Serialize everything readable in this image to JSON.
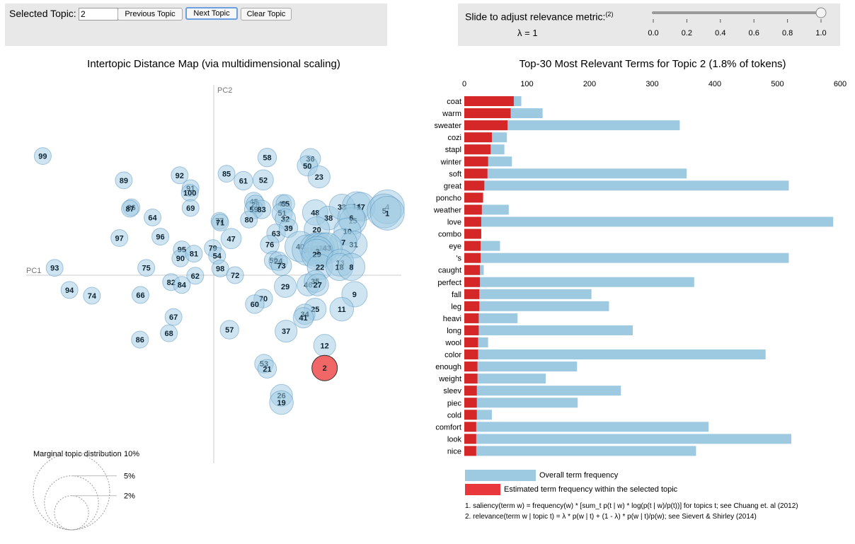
{
  "topic_controls": {
    "label": "Selected Topic:",
    "value": "2",
    "prev_label": "Previous Topic",
    "next_label": "Next Topic",
    "clear_label": "Clear Topic"
  },
  "lambda_controls": {
    "label": "Slide to adjust relevance metric:",
    "footnote_marker": "(2)",
    "lambda_text": "λ = 1",
    "value": 1.0,
    "ticks": [
      "0.0",
      "0.2",
      "0.4",
      "0.6",
      "0.8",
      "1.0"
    ]
  },
  "colors": {
    "bubble_fill": "#9ecae1",
    "bubble_stroke": "#4a8bbd",
    "selected_fill": "#ef5555",
    "bar_overall": "#9ecae1",
    "bar_topic": "#d62728",
    "legend_topic": "#e8383b"
  },
  "chart_data": [
    {
      "type": "scatter",
      "title": "Intertopic Distance Map (via multidimensional scaling)",
      "xlabel": "PC1",
      "ylabel": "PC2",
      "xlim": [
        -10,
        10
      ],
      "ylim": [
        -10,
        10
      ],
      "selected_topic": "2",
      "legend_title": "Marginal topic distribution",
      "legend_entries": [
        {
          "label": "2%",
          "share": 0.02
        },
        {
          "label": "5%",
          "share": 0.05
        },
        {
          "label": "10%",
          "share": 0.1
        }
      ],
      "points": [
        {
          "id": "99",
          "x": -9.22,
          "y": 6.38,
          "size": 1
        },
        {
          "id": "89",
          "x": -4.85,
          "y": 5.08,
          "size": 1
        },
        {
          "id": "92",
          "x": -1.84,
          "y": 5.35,
          "size": 1
        },
        {
          "id": "91",
          "x": -1.25,
          "y": 4.66,
          "size": 1
        },
        {
          "id": "100",
          "x": -1.29,
          "y": 4.41,
          "size": 1
        },
        {
          "id": "69",
          "x": -1.25,
          "y": 3.6,
          "size": 1
        },
        {
          "id": "86",
          "x": -4.44,
          "y": 3.63,
          "size": 1
        },
        {
          "id": "87",
          "x": -4.52,
          "y": 3.56,
          "size": 1
        },
        {
          "id": "64",
          "x": -3.3,
          "y": 3.09,
          "size": 1
        },
        {
          "id": "97",
          "x": -5.09,
          "y": 1.99,
          "size": 1
        },
        {
          "id": "96",
          "x": -2.88,
          "y": 2.06,
          "size": 1
        },
        {
          "id": "85",
          "x": 0.69,
          "y": 5.43,
          "size": 1
        },
        {
          "id": "58",
          "x": 2.88,
          "y": 6.3,
          "size": 1.1
        },
        {
          "id": "61",
          "x": 1.6,
          "y": 5.06,
          "size": 1.1
        },
        {
          "id": "52",
          "x": 2.67,
          "y": 5.1,
          "size": 1.2
        },
        {
          "id": "36",
          "x": 5.21,
          "y": 6.24,
          "size": 1.2
        },
        {
          "id": "50",
          "x": 5.05,
          "y": 5.86,
          "size": 1.2
        },
        {
          "id": "23",
          "x": 5.68,
          "y": 5.26,
          "size": 1.3
        },
        {
          "id": "45",
          "x": 2.16,
          "y": 3.94,
          "size": 1.1
        },
        {
          "id": "28",
          "x": 2.25,
          "y": 3.79,
          "size": 1.1
        },
        {
          "id": "59",
          "x": 2.16,
          "y": 3.52,
          "size": 1.1
        },
        {
          "id": "83",
          "x": 2.58,
          "y": 3.52,
          "size": 1.1
        },
        {
          "id": "49",
          "x": 3.69,
          "y": 3.82,
          "size": 1.1
        },
        {
          "id": "65",
          "x": 3.86,
          "y": 3.82,
          "size": 1.1
        },
        {
          "id": "51",
          "x": 3.69,
          "y": 3.33,
          "size": 1.2
        },
        {
          "id": "32",
          "x": 3.86,
          "y": 3.02,
          "size": 1.2
        },
        {
          "id": "80",
          "x": 1.9,
          "y": 2.98,
          "size": 1
        },
        {
          "id": "77",
          "x": 0.31,
          "y": 2.91,
          "size": 1
        },
        {
          "id": "71",
          "x": 0.35,
          "y": 2.82,
          "size": 1
        },
        {
          "id": "47",
          "x": 0.94,
          "y": 1.96,
          "size": 1.2
        },
        {
          "id": "63",
          "x": 3.36,
          "y": 2.24,
          "size": 1.1
        },
        {
          "id": "39",
          "x": 4.03,
          "y": 2.52,
          "size": 1.1
        },
        {
          "id": "76",
          "x": 3.02,
          "y": 1.64,
          "size": 1.1
        },
        {
          "id": "48",
          "x": 5.47,
          "y": 3.36,
          "size": 1.5
        },
        {
          "id": "38",
          "x": 6.19,
          "y": 3.06,
          "size": 1.4
        },
        {
          "id": "33",
          "x": 6.91,
          "y": 3.66,
          "size": 1.5
        },
        {
          "id": "14",
          "x": 7.71,
          "y": 3.7,
          "size": 1.7
        },
        {
          "id": "17",
          "x": 7.93,
          "y": 3.66,
          "size": 1.7
        },
        {
          "id": "4",
          "x": 9.36,
          "y": 3.66,
          "size": 2
        },
        {
          "id": "5",
          "x": 9.19,
          "y": 3.44,
          "size": 2
        },
        {
          "id": "1",
          "x": 9.36,
          "y": 3.32,
          "size": 2
        },
        {
          "id": "15",
          "x": 7.5,
          "y": 2.91,
          "size": 1.6
        },
        {
          "id": "6",
          "x": 7.42,
          "y": 3.06,
          "size": 1.6
        },
        {
          "id": "20",
          "x": 5.56,
          "y": 2.45,
          "size": 1.5
        },
        {
          "id": "10",
          "x": 7.21,
          "y": 2.34,
          "size": 1.6
        },
        {
          "id": "31",
          "x": 7.54,
          "y": 1.64,
          "size": 1.6
        },
        {
          "id": "7",
          "x": 6.99,
          "y": 1.76,
          "size": 1.6
        },
        {
          "id": "40",
          "x": 4.66,
          "y": 1.53,
          "size": 1.8
        },
        {
          "id": "30",
          "x": 5.05,
          "y": 1.34,
          "size": 1.8
        },
        {
          "id": "44",
          "x": 5.47,
          "y": 1.42,
          "size": 1.8
        },
        {
          "id": "18",
          "x": 5.68,
          "y": 1.45,
          "size": 1.8
        },
        {
          "id": "16",
          "x": 5.89,
          "y": 1.45,
          "size": 1.8
        },
        {
          "id": "43",
          "x": 6.1,
          "y": 1.45,
          "size": 1.8
        },
        {
          "id": "3",
          "x": 5.6,
          "y": 1.26,
          "size": 1.8
        },
        {
          "id": "29",
          "x": 5.56,
          "y": 1.11,
          "size": 1.8
        },
        {
          "id": "95",
          "x": -1.72,
          "y": 1.38,
          "size": 1
        },
        {
          "id": "90",
          "x": -1.8,
          "y": 0.9,
          "size": 1
        },
        {
          "id": "81",
          "x": -1.07,
          "y": 1.15,
          "size": 1
        },
        {
          "id": "79",
          "x": -0.05,
          "y": 1.45,
          "size": 1
        },
        {
          "id": "54",
          "x": 0.18,
          "y": 1.04,
          "size": 1
        },
        {
          "id": "98",
          "x": 0.35,
          "y": 0.36,
          "size": 1
        },
        {
          "id": "72",
          "x": 1.15,
          "y": 0.0,
          "size": 1
        },
        {
          "id": "75",
          "x": -3.64,
          "y": 0.39,
          "size": 1
        },
        {
          "id": "93",
          "x": -8.58,
          "y": 0.39,
          "size": 1
        },
        {
          "id": "62",
          "x": -1.0,
          "y": -0.03,
          "size": 1
        },
        {
          "id": "82",
          "x": -2.3,
          "y": -0.37,
          "size": 1
        },
        {
          "id": "84",
          "x": -1.72,
          "y": -0.52,
          "size": 1
        },
        {
          "id": "94",
          "x": -7.78,
          "y": -0.79,
          "size": 1
        },
        {
          "id": "74",
          "x": -6.57,
          "y": -1.1,
          "size": 1
        },
        {
          "id": "66",
          "x": -3.95,
          "y": -1.06,
          "size": 1
        },
        {
          "id": "50",
          "x": 3.23,
          "y": 0.79,
          "size": 1.1
        },
        {
          "id": "24",
          "x": 3.48,
          "y": 0.75,
          "size": 1.1
        },
        {
          "id": "73",
          "x": 3.65,
          "y": 0.52,
          "size": 1.2
        },
        {
          "id": "22",
          "x": 5.73,
          "y": 0.44,
          "size": 1.5
        },
        {
          "id": "13",
          "x": 6.82,
          "y": 0.67,
          "size": 1.6
        },
        {
          "id": "18",
          "x": 6.78,
          "y": 0.44,
          "size": 1.6
        },
        {
          "id": "8",
          "x": 7.42,
          "y": 0.44,
          "size": 1.6
        },
        {
          "id": "29",
          "x": 3.86,
          "y": -0.6,
          "size": 1.3
        },
        {
          "id": "46",
          "x": 5.09,
          "y": -0.52,
          "size": 1.3
        },
        {
          "id": "35",
          "x": 5.47,
          "y": -0.33,
          "size": 1.3
        },
        {
          "id": "27",
          "x": 5.6,
          "y": -0.52,
          "size": 1.3
        },
        {
          "id": "9",
          "x": 7.59,
          "y": -1.02,
          "size": 1.5
        },
        {
          "id": "70",
          "x": 2.67,
          "y": -1.25,
          "size": 1.1
        },
        {
          "id": "60",
          "x": 2.21,
          "y": -1.55,
          "size": 1.1
        },
        {
          "id": "25",
          "x": 5.47,
          "y": -1.82,
          "size": 1.3
        },
        {
          "id": "11",
          "x": 6.9,
          "y": -1.82,
          "size": 1.4
        },
        {
          "id": "34",
          "x": 4.91,
          "y": -2.09,
          "size": 1.2
        },
        {
          "id": "41",
          "x": 4.83,
          "y": -2.28,
          "size": 1.2
        },
        {
          "id": "67",
          "x": -2.17,
          "y": -2.24,
          "size": 1
        },
        {
          "id": "68",
          "x": -2.42,
          "y": -3.11,
          "size": 1
        },
        {
          "id": "86",
          "x": -3.98,
          "y": -3.45,
          "size": 1
        },
        {
          "id": "57",
          "x": 0.85,
          "y": -2.92,
          "size": 1.1
        },
        {
          "id": "37",
          "x": 3.9,
          "y": -3.0,
          "size": 1.3
        },
        {
          "id": "12",
          "x": 5.98,
          "y": -3.76,
          "size": 1.3
        },
        {
          "id": "53",
          "x": 2.71,
          "y": -4.74,
          "size": 1.1
        },
        {
          "id": "21",
          "x": 2.88,
          "y": -5.01,
          "size": 1.1
        },
        {
          "id": "2",
          "x": 5.98,
          "y": -4.97,
          "size": 1.5
        },
        {
          "id": "26",
          "x": 3.65,
          "y": -6.44,
          "size": 1.3
        },
        {
          "id": "19",
          "x": 3.65,
          "y": -6.82,
          "size": 1.4
        }
      ]
    },
    {
      "type": "bar",
      "orientation": "horizontal",
      "title": "Top-30 Most Relevant Terms for Topic 2 (1.8% of tokens)",
      "xlim": [
        0,
        600
      ],
      "xticks": [
        0,
        100,
        200,
        300,
        400,
        500,
        600
      ],
      "categories": [
        "coat",
        "warm",
        "sweater",
        "cozi",
        "stapl",
        "winter",
        "soft",
        "great",
        "poncho",
        "weather",
        "love",
        "combo",
        "eye",
        "'s",
        "caught",
        "perfect",
        "fall",
        "leg",
        "heavi",
        "long",
        "wool",
        "color",
        "enough",
        "weight",
        "sleev",
        "piec",
        "cold",
        "comfort",
        "look",
        "nice"
      ],
      "series": [
        {
          "name": "Overall term frequency",
          "values": [
            91,
            125,
            344,
            68,
            64,
            76,
            355,
            518,
            30,
            71,
            589,
            27,
            57,
            518,
            31,
            367,
            203,
            231,
            85,
            269,
            38,
            481,
            180,
            130,
            250,
            181,
            44,
            390,
            522,
            370
          ]
        },
        {
          "name": "Estimated term frequency within the selected topic",
          "values": [
            79,
            74,
            69,
            44,
            42,
            38,
            37,
            32,
            30,
            28,
            27,
            27,
            26,
            26,
            25,
            25,
            24,
            24,
            23,
            23,
            22,
            22,
            21,
            21,
            20,
            20,
            20,
            19,
            19,
            19
          ]
        }
      ],
      "legend": [
        "Overall term frequency",
        "Estimated term frequency within the selected topic"
      ],
      "footnotes": [
        "1. saliency(term w) = frequency(w) * [sum_t p(t | w) * log(p(t | w)/p(t))] for topics t; see Chuang et. al (2012)",
        "2. relevance(term w | topic t) = λ * p(w | t) + (1 - λ) * p(w | t)/p(w); see Sievert & Shirley (2014)"
      ]
    }
  ]
}
